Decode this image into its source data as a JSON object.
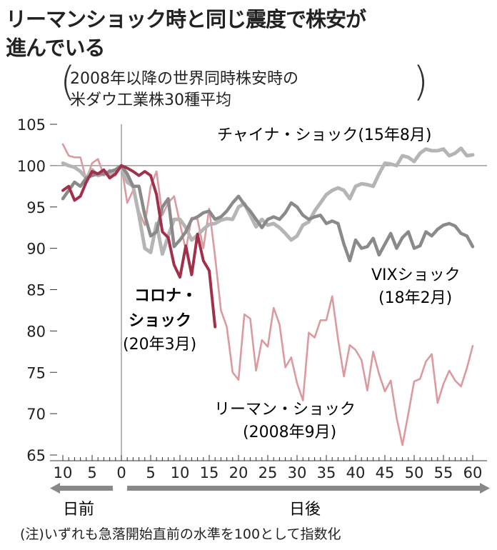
{
  "header": {
    "title_line1": "リーマンショック時と同じ震度で株安が",
    "title_line2": "進んでいる",
    "subtitle_line1": "2008年以降の世界同時株安時の",
    "subtitle_line2": "米ダウ工業株30種平均"
  },
  "arrows": {
    "before": "日前",
    "after": "日後"
  },
  "note": "(注)いずれも急落開始直前の水準を100として指数化",
  "chart_data": {
    "type": "line",
    "title": "",
    "xlabel": "",
    "ylabel": "",
    "ylim": [
      65,
      105
    ],
    "xlim": [
      -10,
      60
    ],
    "yticks": [
      "105",
      "100",
      "95",
      "90",
      "85",
      "80",
      "75",
      "70",
      "65"
    ],
    "xtick_labels": [
      "10",
      "5",
      "0",
      "5",
      "10",
      "15",
      "20",
      "25",
      "30",
      "35",
      "40",
      "45",
      "50",
      "55",
      "60"
    ],
    "xtick_values": [
      -10,
      -5,
      0,
      5,
      10,
      15,
      20,
      25,
      30,
      35,
      40,
      45,
      50,
      55,
      60
    ],
    "reference_line": 100,
    "grid": false,
    "x_start": -10,
    "series": [
      {
        "name_line1": "リーマン・ショック",
        "name_line2": "(2008年9月)",
        "color": "#dc9a9f",
        "values": [
          102.6,
          101.2,
          101,
          101,
          98.3,
          100.3,
          100.8,
          98.8,
          99.5,
          98.8,
          100,
          95.5,
          97,
          94.5,
          92.8,
          97.5,
          99.3,
          94,
          95.5,
          96.3,
          93,
          89.8,
          93.7,
          93.5,
          90,
          94.8,
          89,
          82.5,
          80.5,
          75,
          74.1,
          82,
          81.5,
          75.2,
          78.9,
          78.1,
          82.8,
          80.8,
          75.6,
          76.8,
          73.7,
          71.6,
          79.8,
          79.2,
          81.3,
          81.3,
          84.2,
          79,
          74.5,
          78.3,
          77.7,
          76.5,
          72.8,
          77.5,
          74.8,
          72.7,
          74,
          69.5,
          66.2,
          70,
          73.9,
          74.2,
          76.3,
          77.2,
          71.3,
          73.6,
          75.2,
          74,
          73.3,
          75.5,
          78.2
        ]
      },
      {
        "name_line1": "チャイナ・ショック(15年8月)",
        "name_line2": "",
        "color": "#b5b5b5",
        "values": [
          100.3,
          100,
          99.8,
          99.3,
          98.5,
          99.5,
          98.8,
          99,
          99,
          99.5,
          100,
          98,
          97.5,
          94,
          90,
          89.5,
          93,
          89.3,
          91.5,
          93.5,
          93.5,
          92.5,
          91,
          91.6,
          92.3,
          92.9,
          93,
          93.4,
          93.6,
          93.5,
          95,
          95.4,
          94,
          92.6,
          93.5,
          92.8,
          93,
          92.5,
          91.8,
          91,
          91.5,
          92.8,
          93.2,
          94.5,
          95.5,
          96.5,
          97,
          97.3,
          97,
          96,
          97.5,
          97.8,
          97.7,
          97.5,
          99,
          100.3,
          100.2,
          100,
          101.2,
          101,
          100.5,
          101.5,
          102,
          101.8,
          101.8,
          102,
          101.2,
          101.5,
          102.1,
          101.2,
          101.3
        ]
      },
      {
        "name_line1": "VIXショック",
        "name_line2": "(18年2月)",
        "color": "#8a8a8a",
        "values": [
          96,
          97,
          98,
          97.5,
          98.5,
          98.8,
          99,
          99,
          99.3,
          99.5,
          100,
          99,
          97.5,
          97.5,
          94,
          91.5,
          92,
          95,
          96,
          90.2,
          91,
          92,
          93.5,
          93.8,
          94.3,
          94.5,
          93.5,
          93.8,
          94.5,
          95.5,
          96.3,
          95.3,
          94.5,
          93.5,
          92.5,
          93.5,
          93.8,
          93.5,
          94.3,
          95.5,
          95,
          94,
          93.5,
          93.8,
          94,
          93,
          93.3,
          93,
          90.5,
          88.5,
          91,
          90,
          90.2,
          91.2,
          89.2,
          90.5,
          91.8,
          90,
          91.3,
          92,
          90,
          90.3,
          92,
          91.5,
          92.3,
          92.8,
          93,
          92.7,
          91.8,
          91.5,
          90.2
        ]
      },
      {
        "name_line1": "コロナ・",
        "name_line2": "ショック",
        "name_line3": "(20年3月)",
        "color": "#a3304a",
        "values": [
          97,
          97.5,
          95.8,
          96.3,
          98,
          99.3,
          99,
          99.5,
          98.5,
          99,
          100,
          99.7,
          99.3,
          98.8,
          99.3,
          98.8,
          96.5,
          92,
          91.3,
          88,
          86.5,
          90.3,
          86.8,
          91.7,
          88.5,
          87.3,
          80.5
        ]
      }
    ]
  }
}
